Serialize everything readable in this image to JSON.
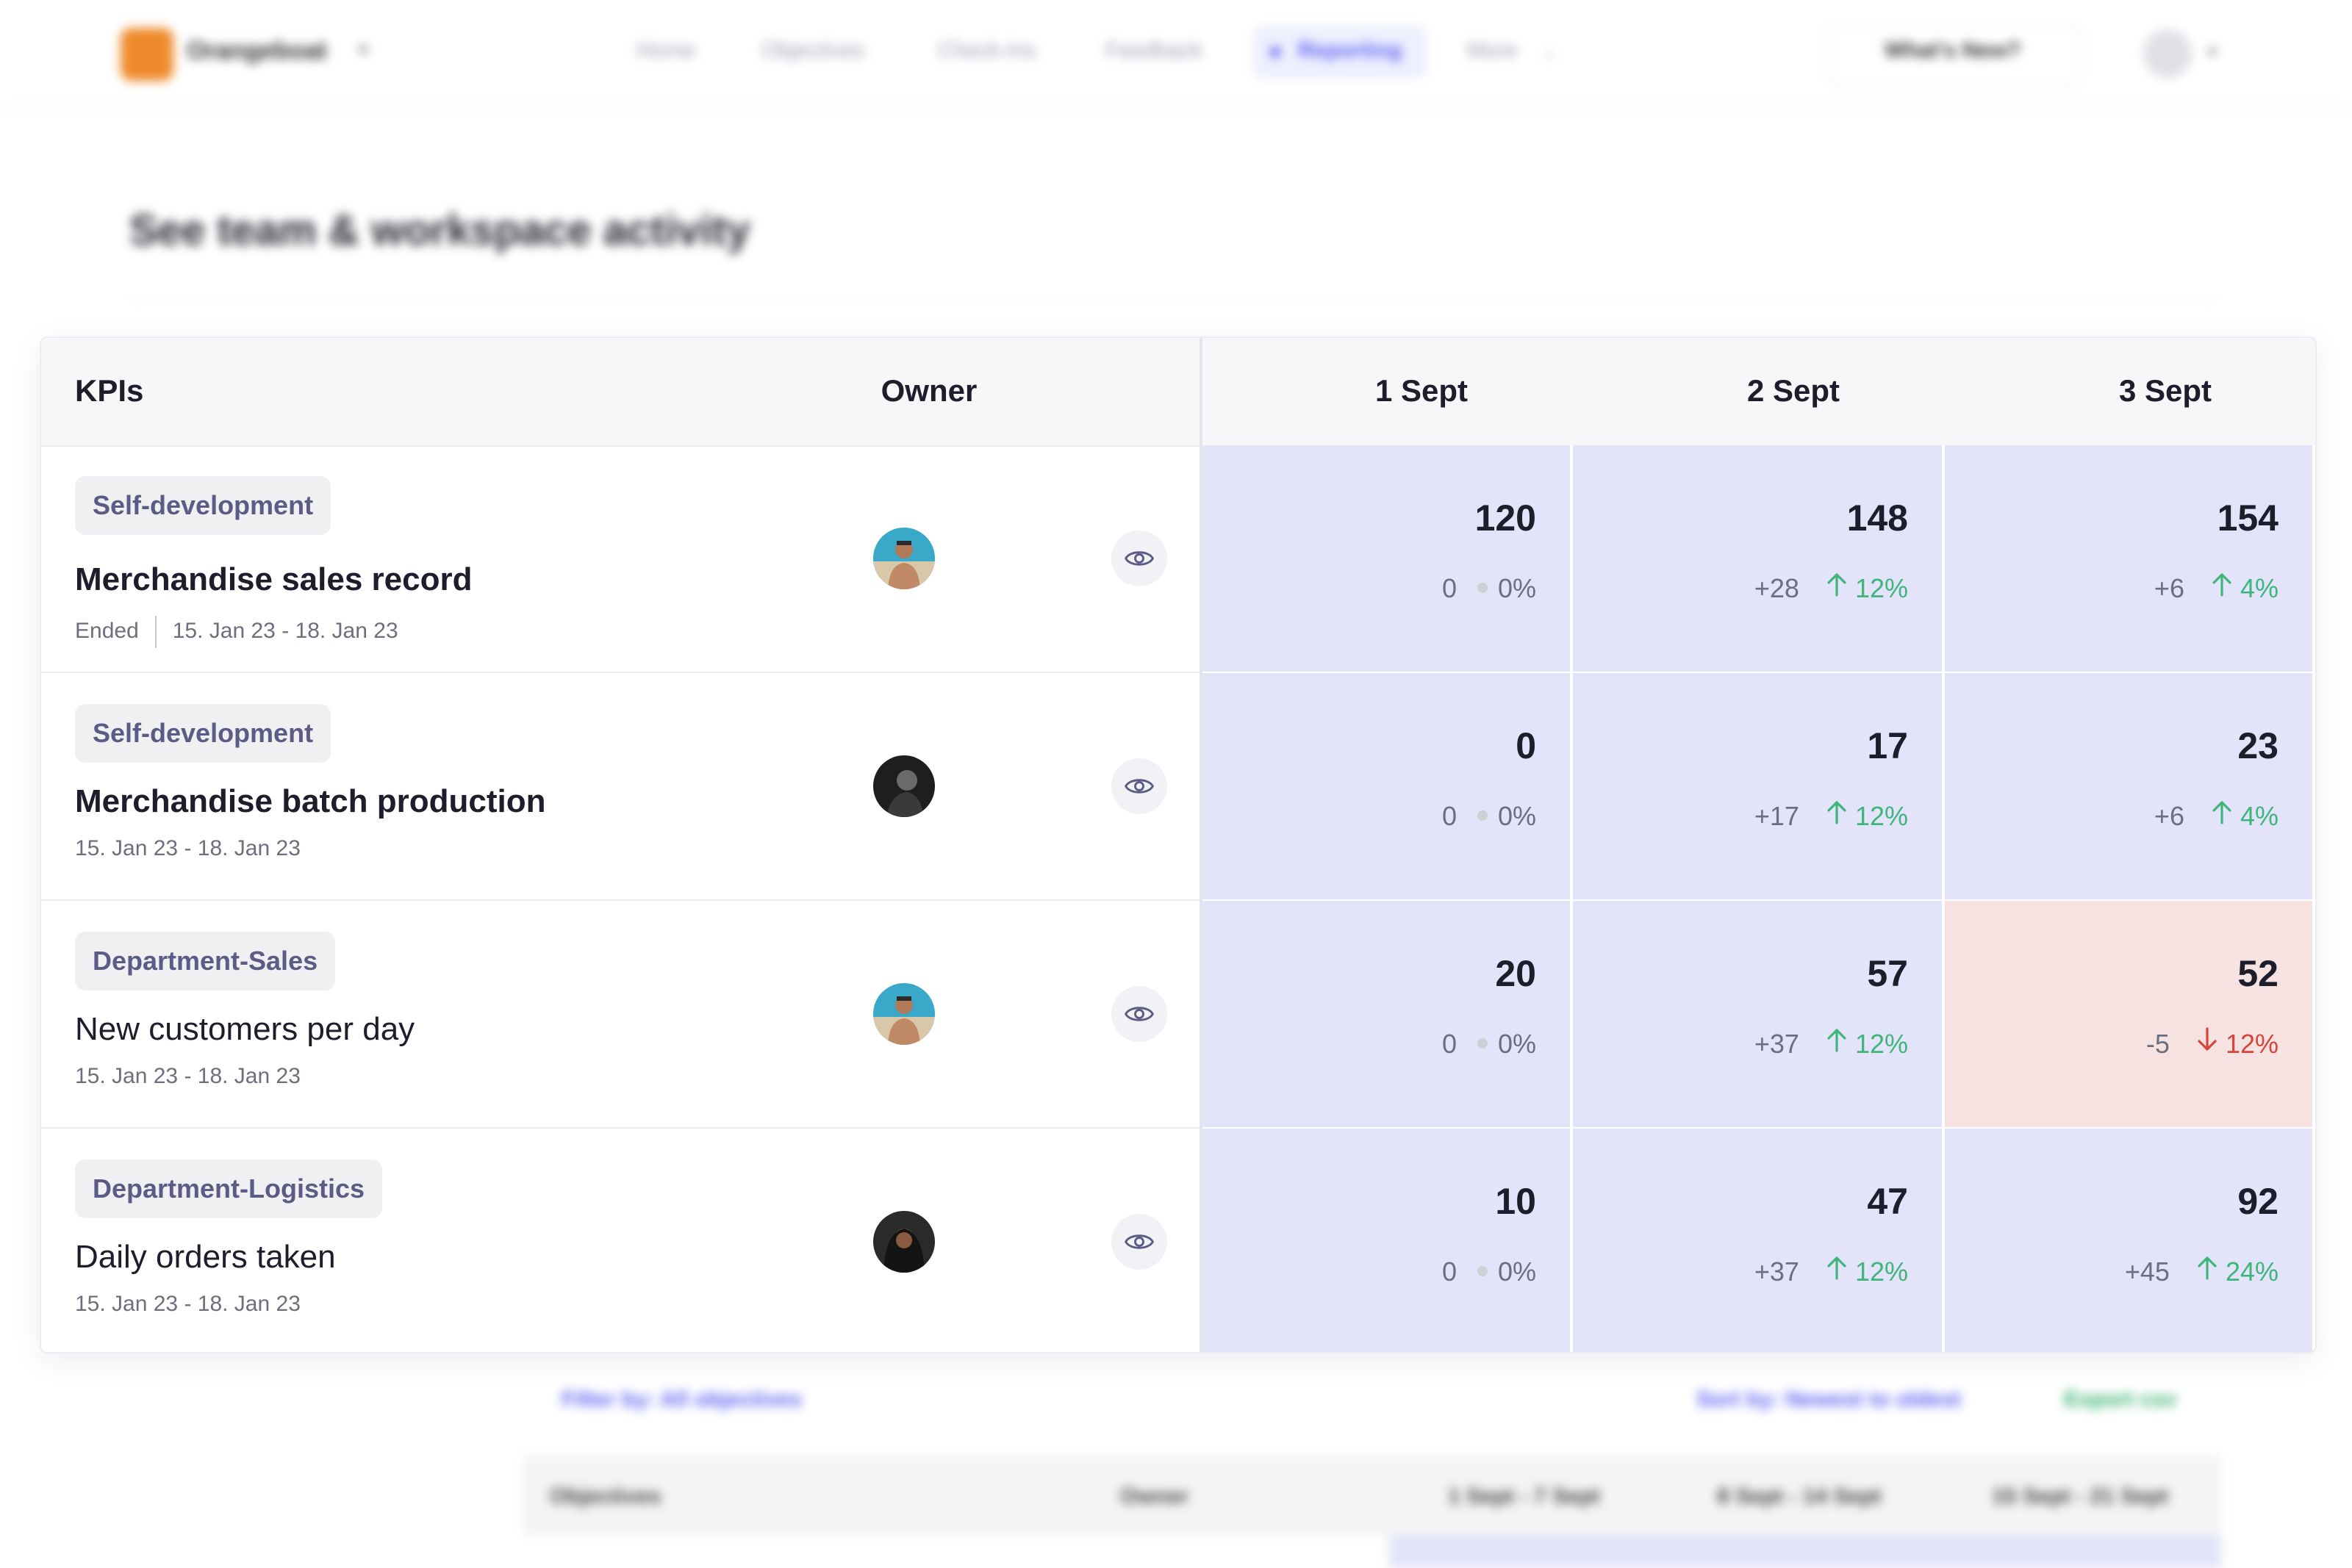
{
  "background": {
    "brand": "Orangeboat",
    "nav": [
      "Home",
      "Objectives",
      "Check-ins",
      "Feedback",
      "Reporting",
      "More"
    ],
    "nav_active": "Reporting",
    "whats_new": "What's New?",
    "page_title": "See team & workspace activity",
    "filter_label": "Filter by: All objectives",
    "sort_label": "Sort by: Newest to oldest",
    "export_label": "Export csv",
    "table_headers": [
      "Objectives",
      "Owner",
      "1 Sept - 7 Sept",
      "8 Sept - 14 Sept",
      "15 Sept - 21 Sept"
    ]
  },
  "table": {
    "headers": {
      "kpis": "KPIs",
      "owner": "Owner",
      "dates": [
        "1 Sept",
        "2 Sept",
        "3 Sept"
      ]
    },
    "rows": [
      {
        "tag": "Self-development",
        "name": "Merchandise sales record",
        "status": "Ended",
        "range": "15. Jan 23 - 18. Jan 23",
        "avatar": "beach-avatar",
        "cells": [
          {
            "value": "120",
            "delta": "0",
            "pct": "0%",
            "trend": "flat"
          },
          {
            "value": "148",
            "delta": "+28",
            "pct": "12%",
            "trend": "up"
          },
          {
            "value": "154",
            "delta": "+6",
            "pct": "4%",
            "trend": "up"
          }
        ]
      },
      {
        "tag": "Self-development",
        "name": "Merchandise batch production",
        "status": "",
        "range": "15. Jan 23 - 18. Jan 23",
        "avatar": "dark-avatar",
        "cells": [
          {
            "value": "0",
            "delta": "0",
            "pct": "0%",
            "trend": "flat"
          },
          {
            "value": "17",
            "delta": "+17",
            "pct": "12%",
            "trend": "up"
          },
          {
            "value": "23",
            "delta": "+6",
            "pct": "4%",
            "trend": "up"
          }
        ]
      },
      {
        "tag": "Department-Sales",
        "name": "New customers per day",
        "status": "",
        "range": "15. Jan 23 - 18. Jan 23",
        "avatar": "beach-avatar",
        "cells": [
          {
            "value": "20",
            "delta": "0",
            "pct": "0%",
            "trend": "flat"
          },
          {
            "value": "57",
            "delta": "+37",
            "pct": "12%",
            "trend": "up"
          },
          {
            "value": "52",
            "delta": "-5",
            "pct": "12%",
            "trend": "down"
          }
        ]
      },
      {
        "tag": "Department-Logistics",
        "name": "Daily orders taken",
        "status": "",
        "range": "15. Jan 23 - 18. Jan 23",
        "avatar": "hoodie-avatar",
        "cells": [
          {
            "value": "10",
            "delta": "0",
            "pct": "0%",
            "trend": "flat"
          },
          {
            "value": "47",
            "delta": "+37",
            "pct": "12%",
            "trend": "up"
          },
          {
            "value": "92",
            "delta": "+45",
            "pct": "24%",
            "trend": "up"
          }
        ]
      }
    ]
  },
  "colors": {
    "accent": "#5a5ef0",
    "cell_bg": "#e3e3fa",
    "cell_negative_bg": "#f6e3e1",
    "up": "#3eb57a",
    "down": "#d6443a",
    "brand_orange": "#ef8a2c"
  }
}
